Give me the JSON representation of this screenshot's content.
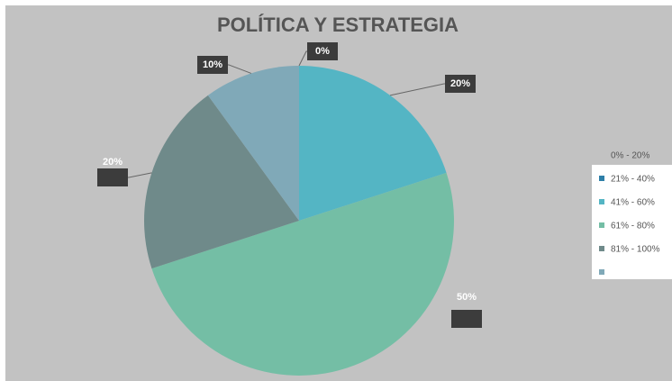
{
  "chart_data": {
    "type": "pie",
    "title": "POLÍTICA Y ESTRATEGIA",
    "categories": [
      "0% - 20%",
      "21% - 40%",
      "41% - 60%",
      "61% - 80%",
      "81% - 100%"
    ],
    "values": [
      0,
      20,
      50,
      20,
      10
    ],
    "value_labels": [
      "0%",
      "20%",
      "50%",
      "20%",
      "10%"
    ],
    "colors": [
      "#2e7fa8",
      "#54b5c4",
      "#74bea5",
      "#6f8a8a",
      "#80a9b8"
    ]
  }
}
